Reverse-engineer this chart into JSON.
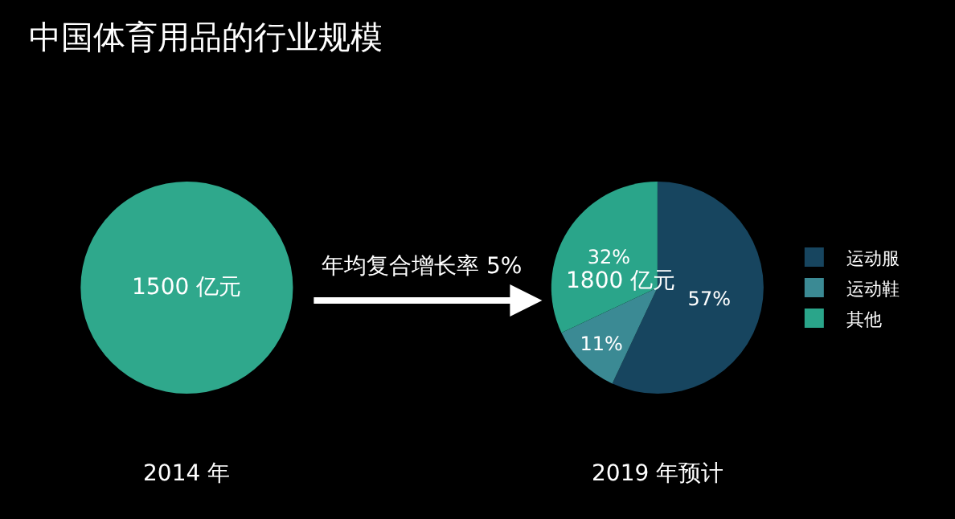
{
  "chart_data": [
    {
      "type": "pie",
      "title": "中国体育用品的行业规模",
      "categories": [
        null
      ],
      "values": [
        100
      ],
      "colors": [
        "#2fa88c"
      ],
      "annotations": [
        "1500 亿元"
      ],
      "xlabel": "2014 年"
    },
    {
      "type": "pie",
      "categories": [
        "运动服",
        "运动鞋",
        "其他"
      ],
      "values": [
        57,
        11,
        32
      ],
      "colors": [
        "#17455f",
        "#3b8a94",
        "#2aa58a"
      ],
      "value_labels": [
        "57%",
        "11%",
        "32%"
      ],
      "annotations": [
        "1800 亿元",
        "年均复合增长率 5%"
      ],
      "xlabel": "2019 年预计",
      "legend": "right"
    }
  ]
}
